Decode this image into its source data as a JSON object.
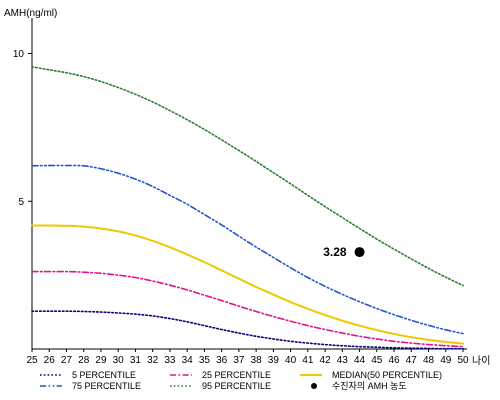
{
  "chart_data": {
    "type": "line",
    "title": "",
    "ylabel": "AMH(ng/ml)",
    "xlabel": "나이",
    "xlim": [
      25,
      50
    ],
    "ylim": [
      0,
      11
    ],
    "yticks": [
      5,
      10
    ],
    "x": [
      25,
      26,
      27,
      28,
      29,
      30,
      31,
      32,
      33,
      34,
      35,
      36,
      37,
      38,
      39,
      40,
      41,
      42,
      43,
      44,
      45,
      46,
      47,
      48,
      49,
      50
    ],
    "grid": false,
    "legend_position": "bottom",
    "series": [
      {
        "name": "5 PERCENTILE",
        "color": "#000080",
        "style": "dotted",
        "values": [
          1.28,
          1.28,
          1.28,
          1.27,
          1.25,
          1.22,
          1.18,
          1.12,
          1.03,
          0.92,
          0.79,
          0.66,
          0.54,
          0.43,
          0.34,
          0.26,
          0.2,
          0.15,
          0.11,
          0.08,
          0.06,
          0.04,
          0.03,
          0.02,
          0.01,
          0.01
        ]
      },
      {
        "name": "25 PERCENTILE",
        "color": "#e0148c",
        "style": "dashdot",
        "values": [
          2.62,
          2.62,
          2.62,
          2.6,
          2.56,
          2.5,
          2.42,
          2.3,
          2.16,
          2.0,
          1.82,
          1.64,
          1.45,
          1.27,
          1.1,
          0.94,
          0.79,
          0.66,
          0.54,
          0.43,
          0.34,
          0.26,
          0.2,
          0.15,
          0.11,
          0.08
        ]
      },
      {
        "name": "MEDIAN(50 PERCENTILE)",
        "color": "#f0c800",
        "style": "solid",
        "values": [
          4.18,
          4.18,
          4.17,
          4.14,
          4.08,
          3.98,
          3.84,
          3.66,
          3.44,
          3.2,
          2.94,
          2.66,
          2.38,
          2.1,
          1.84,
          1.59,
          1.36,
          1.15,
          0.96,
          0.79,
          0.64,
          0.51,
          0.4,
          0.31,
          0.24,
          0.18
        ]
      },
      {
        "name": "75 PERCENTILE",
        "color": "#2255cc",
        "style": "dashdotdot",
        "values": [
          6.2,
          6.21,
          6.21,
          6.2,
          6.1,
          5.95,
          5.75,
          5.5,
          5.2,
          4.9,
          4.55,
          4.2,
          3.82,
          3.45,
          3.1,
          2.75,
          2.42,
          2.12,
          1.85,
          1.6,
          1.37,
          1.16,
          0.97,
          0.8,
          0.65,
          0.52
        ]
      },
      {
        "name": "95 PERCENTILE",
        "color": "#2e7d32",
        "style": "dotted",
        "values": [
          9.55,
          9.45,
          9.35,
          9.22,
          9.05,
          8.85,
          8.62,
          8.36,
          8.07,
          7.76,
          7.43,
          7.08,
          6.72,
          6.35,
          5.97,
          5.59,
          5.2,
          4.82,
          4.45,
          4.08,
          3.72,
          3.38,
          3.05,
          2.73,
          2.43,
          2.15
        ]
      }
    ],
    "marker": {
      "name": "수진자의 AMH 농도",
      "x": 44,
      "y": 3.28,
      "label": "3.28",
      "color": "#000000"
    }
  }
}
